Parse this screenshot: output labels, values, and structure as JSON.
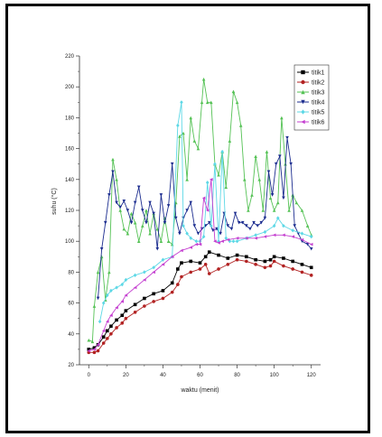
{
  "chart_data": {
    "type": "line",
    "xlabel": "waktu (menit)",
    "ylabel": "suhu (°C)",
    "xlim": [
      -5,
      125
    ],
    "ylim": [
      20,
      220
    ],
    "xticks": [
      0,
      20,
      40,
      60,
      80,
      100,
      120
    ],
    "yticks": [
      20,
      40,
      60,
      80,
      100,
      120,
      140,
      160,
      180,
      200,
      220
    ],
    "legend_position": "top-right",
    "grid": false,
    "series": [
      {
        "name": "titik1",
        "color": "#000000",
        "marker": "square",
        "points": [
          [
            0,
            30
          ],
          [
            3,
            31
          ],
          [
            5,
            33
          ],
          [
            8,
            38
          ],
          [
            10,
            42
          ],
          [
            12,
            45
          ],
          [
            15,
            49
          ],
          [
            18,
            52
          ],
          [
            20,
            55
          ],
          [
            25,
            59
          ],
          [
            30,
            63
          ],
          [
            35,
            66
          ],
          [
            40,
            68
          ],
          [
            45,
            73
          ],
          [
            48,
            82
          ],
          [
            50,
            86
          ],
          [
            55,
            87
          ],
          [
            60,
            86
          ],
          [
            63,
            90
          ],
          [
            65,
            93
          ],
          [
            70,
            91
          ],
          [
            75,
            89
          ],
          [
            80,
            91
          ],
          [
            85,
            90
          ],
          [
            90,
            88
          ],
          [
            95,
            87
          ],
          [
            98,
            88
          ],
          [
            100,
            90
          ],
          [
            105,
            89
          ],
          [
            110,
            87
          ],
          [
            115,
            85
          ],
          [
            120,
            83
          ]
        ]
      },
      {
        "name": "titik2",
        "color": "#b22222",
        "marker": "circle",
        "points": [
          [
            0,
            28
          ],
          [
            3,
            28
          ],
          [
            5,
            29
          ],
          [
            8,
            34
          ],
          [
            10,
            37
          ],
          [
            12,
            40
          ],
          [
            15,
            44
          ],
          [
            18,
            47
          ],
          [
            20,
            50
          ],
          [
            25,
            54
          ],
          [
            30,
            58
          ],
          [
            35,
            61
          ],
          [
            40,
            63
          ],
          [
            45,
            67
          ],
          [
            48,
            72
          ],
          [
            50,
            77
          ],
          [
            55,
            80
          ],
          [
            60,
            82
          ],
          [
            63,
            85
          ],
          [
            65,
            79
          ],
          [
            70,
            82
          ],
          [
            75,
            85
          ],
          [
            80,
            88
          ],
          [
            85,
            87
          ],
          [
            90,
            85
          ],
          [
            95,
            83
          ],
          [
            98,
            84
          ],
          [
            100,
            87
          ],
          [
            105,
            84
          ],
          [
            110,
            82
          ],
          [
            115,
            80
          ],
          [
            120,
            78
          ]
        ]
      },
      {
        "name": "titik3",
        "color": "#55c255",
        "marker": "triangle-up",
        "points": [
          [
            0,
            36
          ],
          [
            2,
            35
          ],
          [
            3,
            58
          ],
          [
            5,
            80
          ],
          [
            7,
            90
          ],
          [
            9,
            62
          ],
          [
            11,
            80
          ],
          [
            13,
            153
          ],
          [
            15,
            140
          ],
          [
            17,
            120
          ],
          [
            19,
            108
          ],
          [
            21,
            105
          ],
          [
            23,
            118
          ],
          [
            25,
            112
          ],
          [
            27,
            100
          ],
          [
            29,
            110
          ],
          [
            31,
            120
          ],
          [
            33,
            105
          ],
          [
            35,
            118
          ],
          [
            37,
            108
          ],
          [
            39,
            100
          ],
          [
            41,
            115
          ],
          [
            43,
            100
          ],
          [
            45,
            98
          ],
          [
            47,
            125
          ],
          [
            49,
            168
          ],
          [
            51,
            170
          ],
          [
            53,
            140
          ],
          [
            55,
            180
          ],
          [
            57,
            165
          ],
          [
            59,
            160
          ],
          [
            61,
            190
          ],
          [
            62,
            205
          ],
          [
            64,
            190
          ],
          [
            66,
            190
          ],
          [
            68,
            150
          ],
          [
            70,
            143
          ],
          [
            72,
            158
          ],
          [
            74,
            135
          ],
          [
            76,
            165
          ],
          [
            78,
            197
          ],
          [
            80,
            190
          ],
          [
            82,
            175
          ],
          [
            84,
            140
          ],
          [
            86,
            120
          ],
          [
            88,
            130
          ],
          [
            90,
            155
          ],
          [
            92,
            140
          ],
          [
            94,
            120
          ],
          [
            96,
            158
          ],
          [
            98,
            128
          ],
          [
            100,
            120
          ],
          [
            102,
            125
          ],
          [
            104,
            180
          ],
          [
            106,
            150
          ],
          [
            108,
            120
          ],
          [
            110,
            130
          ],
          [
            112,
            125
          ],
          [
            115,
            120
          ],
          [
            118,
            110
          ],
          [
            120,
            104
          ]
        ]
      },
      {
        "name": "titik4",
        "color": "#1c2d8f",
        "marker": "triangle-down",
        "points": [
          [
            5,
            63
          ],
          [
            7,
            95
          ],
          [
            9,
            112
          ],
          [
            11,
            130
          ],
          [
            13,
            145
          ],
          [
            15,
            125
          ],
          [
            17,
            122
          ],
          [
            19,
            126
          ],
          [
            21,
            120
          ],
          [
            23,
            112
          ],
          [
            25,
            125
          ],
          [
            27,
            135
          ],
          [
            29,
            120
          ],
          [
            31,
            112
          ],
          [
            33,
            125
          ],
          [
            35,
            118
          ],
          [
            37,
            95
          ],
          [
            39,
            130
          ],
          [
            41,
            112
          ],
          [
            43,
            123
          ],
          [
            45,
            150
          ],
          [
            47,
            115
          ],
          [
            49,
            105
          ],
          [
            51,
            115
          ],
          [
            53,
            120
          ],
          [
            55,
            125
          ],
          [
            57,
            110
          ],
          [
            59,
            105
          ],
          [
            61,
            108
          ],
          [
            63,
            110
          ],
          [
            65,
            112
          ],
          [
            67,
            107
          ],
          [
            69,
            108
          ],
          [
            71,
            105
          ],
          [
            73,
            118
          ],
          [
            75,
            110
          ],
          [
            77,
            108
          ],
          [
            79,
            118
          ],
          [
            81,
            112
          ],
          [
            83,
            112
          ],
          [
            85,
            110
          ],
          [
            87,
            108
          ],
          [
            89,
            112
          ],
          [
            91,
            110
          ],
          [
            93,
            112
          ],
          [
            95,
            115
          ],
          [
            97,
            145
          ],
          [
            99,
            130
          ],
          [
            101,
            150
          ],
          [
            103,
            155
          ],
          [
            105,
            128
          ],
          [
            107,
            167
          ],
          [
            109,
            150
          ],
          [
            111,
            110
          ],
          [
            113,
            105
          ],
          [
            115,
            100
          ],
          [
            118,
            98
          ],
          [
            120,
            95
          ]
        ]
      },
      {
        "name": "titik5",
        "color": "#5dd8e6",
        "marker": "diamond",
        "points": [
          [
            6,
            48
          ],
          [
            8,
            60
          ],
          [
            10,
            65
          ],
          [
            12,
            68
          ],
          [
            15,
            70
          ],
          [
            18,
            72
          ],
          [
            20,
            75
          ],
          [
            25,
            78
          ],
          [
            30,
            80
          ],
          [
            35,
            83
          ],
          [
            40,
            88
          ],
          [
            45,
            90
          ],
          [
            48,
            175
          ],
          [
            50,
            190
          ],
          [
            51,
            110
          ],
          [
            53,
            105
          ],
          [
            55,
            102
          ],
          [
            58,
            100
          ],
          [
            60,
            100
          ],
          [
            62,
            103
          ],
          [
            64,
            138
          ],
          [
            66,
            110
          ],
          [
            68,
            150
          ],
          [
            70,
            100
          ],
          [
            72,
            158
          ],
          [
            74,
            102
          ],
          [
            76,
            100
          ],
          [
            78,
            100
          ],
          [
            80,
            100
          ],
          [
            85,
            102
          ],
          [
            90,
            104
          ],
          [
            95,
            106
          ],
          [
            100,
            110
          ],
          [
            102,
            115
          ],
          [
            105,
            110
          ],
          [
            110,
            107
          ],
          [
            115,
            105
          ],
          [
            120,
            103
          ]
        ]
      },
      {
        "name": "titik6",
        "color": "#c43fd0",
        "marker": "triangle-left",
        "points": [
          [
            0,
            29
          ],
          [
            3,
            30
          ],
          [
            5,
            33
          ],
          [
            8,
            42
          ],
          [
            10,
            48
          ],
          [
            12,
            52
          ],
          [
            15,
            57
          ],
          [
            18,
            61
          ],
          [
            20,
            65
          ],
          [
            25,
            70
          ],
          [
            30,
            75
          ],
          [
            35,
            80
          ],
          [
            40,
            85
          ],
          [
            45,
            90
          ],
          [
            50,
            94
          ],
          [
            55,
            96
          ],
          [
            58,
            98
          ],
          [
            60,
            98
          ],
          [
            62,
            128
          ],
          [
            64,
            120
          ],
          [
            66,
            140
          ],
          [
            68,
            100
          ],
          [
            70,
            99
          ],
          [
            72,
            100
          ],
          [
            75,
            101
          ],
          [
            80,
            102
          ],
          [
            85,
            102
          ],
          [
            90,
            102
          ],
          [
            95,
            103
          ],
          [
            100,
            104
          ],
          [
            105,
            104
          ],
          [
            110,
            103
          ],
          [
            115,
            101
          ],
          [
            120,
            98
          ]
        ]
      }
    ]
  }
}
